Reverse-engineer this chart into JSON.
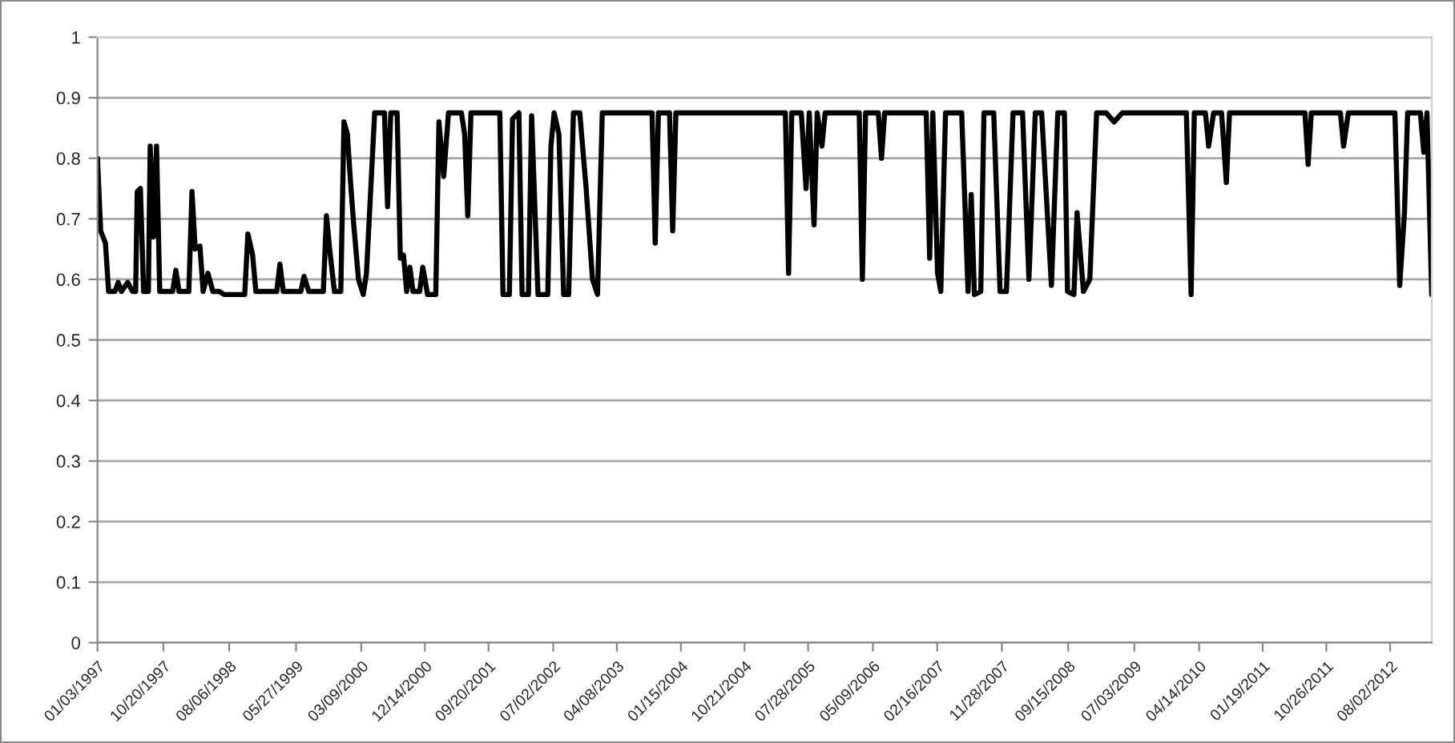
{
  "chart_data": {
    "type": "line",
    "x": [
      "1997-01-03",
      "1997-01-17",
      "1997-02-07",
      "1997-02-21",
      "1997-03-21",
      "1997-04-04",
      "1997-04-18",
      "1997-05-16",
      "1997-06-06",
      "1997-06-20",
      "1997-06-27",
      "1997-07-11",
      "1997-07-25",
      "1997-08-15",
      "1997-08-23",
      "1997-09-06",
      "1997-09-20",
      "1997-10-04",
      "1997-11-30",
      "1997-12-14",
      "1997-12-28",
      "1998-02-09",
      "1998-02-23",
      "1998-03-09",
      "1998-03-30",
      "1998-04-13",
      "1998-05-04",
      "1998-05-26",
      "1998-06-23",
      "1998-07-14",
      "1998-10-13",
      "1998-10-27",
      "1998-11-17",
      "1998-12-01",
      "1999-03-03",
      "1999-03-17",
      "1999-04-01",
      "1999-06-17",
      "1999-07-01",
      "1999-07-22",
      "1999-09-24",
      "1999-10-08",
      "1999-10-22",
      "1999-11-12",
      "1999-12-10",
      "1999-12-24",
      "2000-01-08",
      "2000-01-22",
      "2000-02-05",
      "2000-02-26",
      "2000-03-18",
      "2000-04-01",
      "2000-05-07",
      "2000-06-19",
      "2000-07-03",
      "2000-07-17",
      "2000-08-14",
      "2000-08-28",
      "2000-09-11",
      "2000-09-25",
      "2000-10-09",
      "2000-10-23",
      "2000-11-21",
      "2000-12-05",
      "2000-12-26",
      "2001-01-31",
      "2001-02-14",
      "2001-03-07",
      "2001-03-28",
      "2001-05-24",
      "2001-06-07",
      "2001-06-21",
      "2001-07-05",
      "2001-11-09",
      "2001-11-23",
      "2001-12-21",
      "2002-01-04",
      "2002-02-01",
      "2002-02-15",
      "2002-03-15",
      "2002-03-29",
      "2002-04-26",
      "2002-06-08",
      "2002-06-22",
      "2002-07-06",
      "2002-07-27",
      "2002-08-17",
      "2002-09-08",
      "2002-09-29",
      "2002-10-27",
      "2002-11-24",
      "2002-12-22",
      "2003-01-13",
      "2003-02-03",
      "2003-07-22",
      "2003-09-10",
      "2003-09-24",
      "2003-10-08",
      "2003-11-26",
      "2003-12-10",
      "2003-12-24",
      "2005-04-19",
      "2005-05-03",
      "2005-05-17",
      "2005-06-28",
      "2005-07-19",
      "2005-08-02",
      "2005-08-23",
      "2005-09-06",
      "2005-09-27",
      "2005-10-11",
      "2006-03-10",
      "2006-03-24",
      "2006-04-07",
      "2006-06-02",
      "2006-06-16",
      "2006-06-30",
      "2006-12-30",
      "2007-01-14",
      "2007-01-28",
      "2007-02-18",
      "2007-03-04",
      "2007-03-25",
      "2007-06-04",
      "2007-07-02",
      "2007-07-16",
      "2007-07-30",
      "2007-08-27",
      "2007-09-10",
      "2007-10-23",
      "2007-11-20",
      "2007-12-18",
      "2008-01-16",
      "2008-02-27",
      "2008-03-26",
      "2008-04-23",
      "2008-05-21",
      "2008-07-03",
      "2008-07-31",
      "2008-08-29",
      "2008-09-12",
      "2008-10-10",
      "2008-10-24",
      "2008-11-21",
      "2008-12-19",
      "2009-01-18",
      "2009-03-01",
      "2009-04-05",
      "2009-05-11",
      "2010-02-17",
      "2010-03-10",
      "2010-03-24",
      "2010-05-12",
      "2010-05-26",
      "2010-06-17",
      "2010-07-22",
      "2010-08-12",
      "2010-08-26",
      "2011-07-24",
      "2011-08-07",
      "2011-08-21",
      "2011-12-27",
      "2012-01-10",
      "2012-01-31",
      "2012-08-23",
      "2012-09-13",
      "2012-10-04",
      "2012-10-18",
      "2012-12-13",
      "2012-12-28",
      "2013-01-11",
      "2013-02-01"
    ],
    "series": [
      {
        "color": "#000000",
        "values": [
          0.8,
          0.68,
          0.66,
          0.58,
          0.58,
          0.595,
          0.58,
          0.595,
          0.58,
          0.58,
          0.745,
          0.75,
          0.58,
          0.58,
          0.82,
          0.67,
          0.82,
          0.58,
          0.58,
          0.615,
          0.58,
          0.58,
          0.745,
          0.65,
          0.655,
          0.58,
          0.61,
          0.58,
          0.58,
          0.575,
          0.575,
          0.675,
          0.64,
          0.58,
          0.58,
          0.625,
          0.58,
          0.58,
          0.605,
          0.58,
          0.58,
          0.705,
          0.65,
          0.58,
          0.58,
          0.86,
          0.84,
          0.76,
          0.69,
          0.6,
          0.575,
          0.61,
          0.875,
          0.875,
          0.72,
          0.875,
          0.875,
          0.635,
          0.64,
          0.58,
          0.62,
          0.58,
          0.58,
          0.62,
          0.575,
          0.575,
          0.86,
          0.77,
          0.875,
          0.875,
          0.84,
          0.705,
          0.875,
          0.875,
          0.575,
          0.575,
          0.865,
          0.875,
          0.575,
          0.575,
          0.87,
          0.575,
          0.575,
          0.82,
          0.875,
          0.84,
          0.575,
          0.575,
          0.875,
          0.875,
          0.75,
          0.6,
          0.575,
          0.875,
          0.875,
          0.875,
          0.66,
          0.875,
          0.875,
          0.68,
          0.875,
          0.875,
          0.61,
          0.875,
          0.875,
          0.75,
          0.875,
          0.69,
          0.875,
          0.82,
          0.875,
          0.875,
          0.6,
          0.875,
          0.875,
          0.8,
          0.875,
          0.875,
          0.635,
          0.875,
          0.61,
          0.58,
          0.875,
          0.875,
          0.58,
          0.74,
          0.575,
          0.58,
          0.875,
          0.875,
          0.58,
          0.58,
          0.875,
          0.875,
          0.6,
          0.875,
          0.875,
          0.59,
          0.875,
          0.875,
          0.58,
          0.575,
          0.71,
          0.58,
          0.6,
          0.875,
          0.875,
          0.86,
          0.875,
          0.875,
          0.575,
          0.875,
          0.875,
          0.82,
          0.875,
          0.875,
          0.76,
          0.875,
          0.875,
          0.79,
          0.875,
          0.875,
          0.82,
          0.875,
          0.875,
          0.59,
          0.71,
          0.875,
          0.875,
          0.81,
          0.875,
          0.575
        ]
      }
    ],
    "xlim": [
      "1997-01-03",
      "2013-02-01"
    ],
    "xticks": [
      {
        "value": "1997-01-03",
        "label": "01/03/1997"
      },
      {
        "value": "1997-10-20",
        "label": "10/20/1997"
      },
      {
        "value": "1998-08-06",
        "label": "08/06/1998"
      },
      {
        "value": "1999-05-27",
        "label": "05/27/1999"
      },
      {
        "value": "2000-03-09",
        "label": "03/09/2000"
      },
      {
        "value": "2000-12-14",
        "label": "12/14/2000"
      },
      {
        "value": "2001-09-20",
        "label": "09/20/2001"
      },
      {
        "value": "2002-07-02",
        "label": "07/02/2002"
      },
      {
        "value": "2003-04-08",
        "label": "04/08/2003"
      },
      {
        "value": "2004-01-15",
        "label": "01/15/2004"
      },
      {
        "value": "2004-10-21",
        "label": "10/21/2004"
      },
      {
        "value": "2005-07-28",
        "label": "07/28/2005"
      },
      {
        "value": "2006-05-09",
        "label": "05/09/2006"
      },
      {
        "value": "2007-02-16",
        "label": "02/16/2007"
      },
      {
        "value": "2007-11-28",
        "label": "11/28/2007"
      },
      {
        "value": "2008-09-15",
        "label": "09/15/2008"
      },
      {
        "value": "2009-07-03",
        "label": "07/03/2009"
      },
      {
        "value": "2010-04-14",
        "label": "04/14/2010"
      },
      {
        "value": "2011-01-19",
        "label": "01/19/2011"
      },
      {
        "value": "2011-10-26",
        "label": "10/26/2011"
      },
      {
        "value": "2012-08-02",
        "label": "08/02/2012"
      }
    ],
    "ylim": [
      0,
      1
    ],
    "yticks": [
      0,
      0.1,
      0.2,
      0.3,
      0.4,
      0.5,
      0.6,
      0.7,
      0.8,
      0.9,
      1
    ],
    "grid": "y",
    "marker": "none",
    "line_style": "solid"
  }
}
